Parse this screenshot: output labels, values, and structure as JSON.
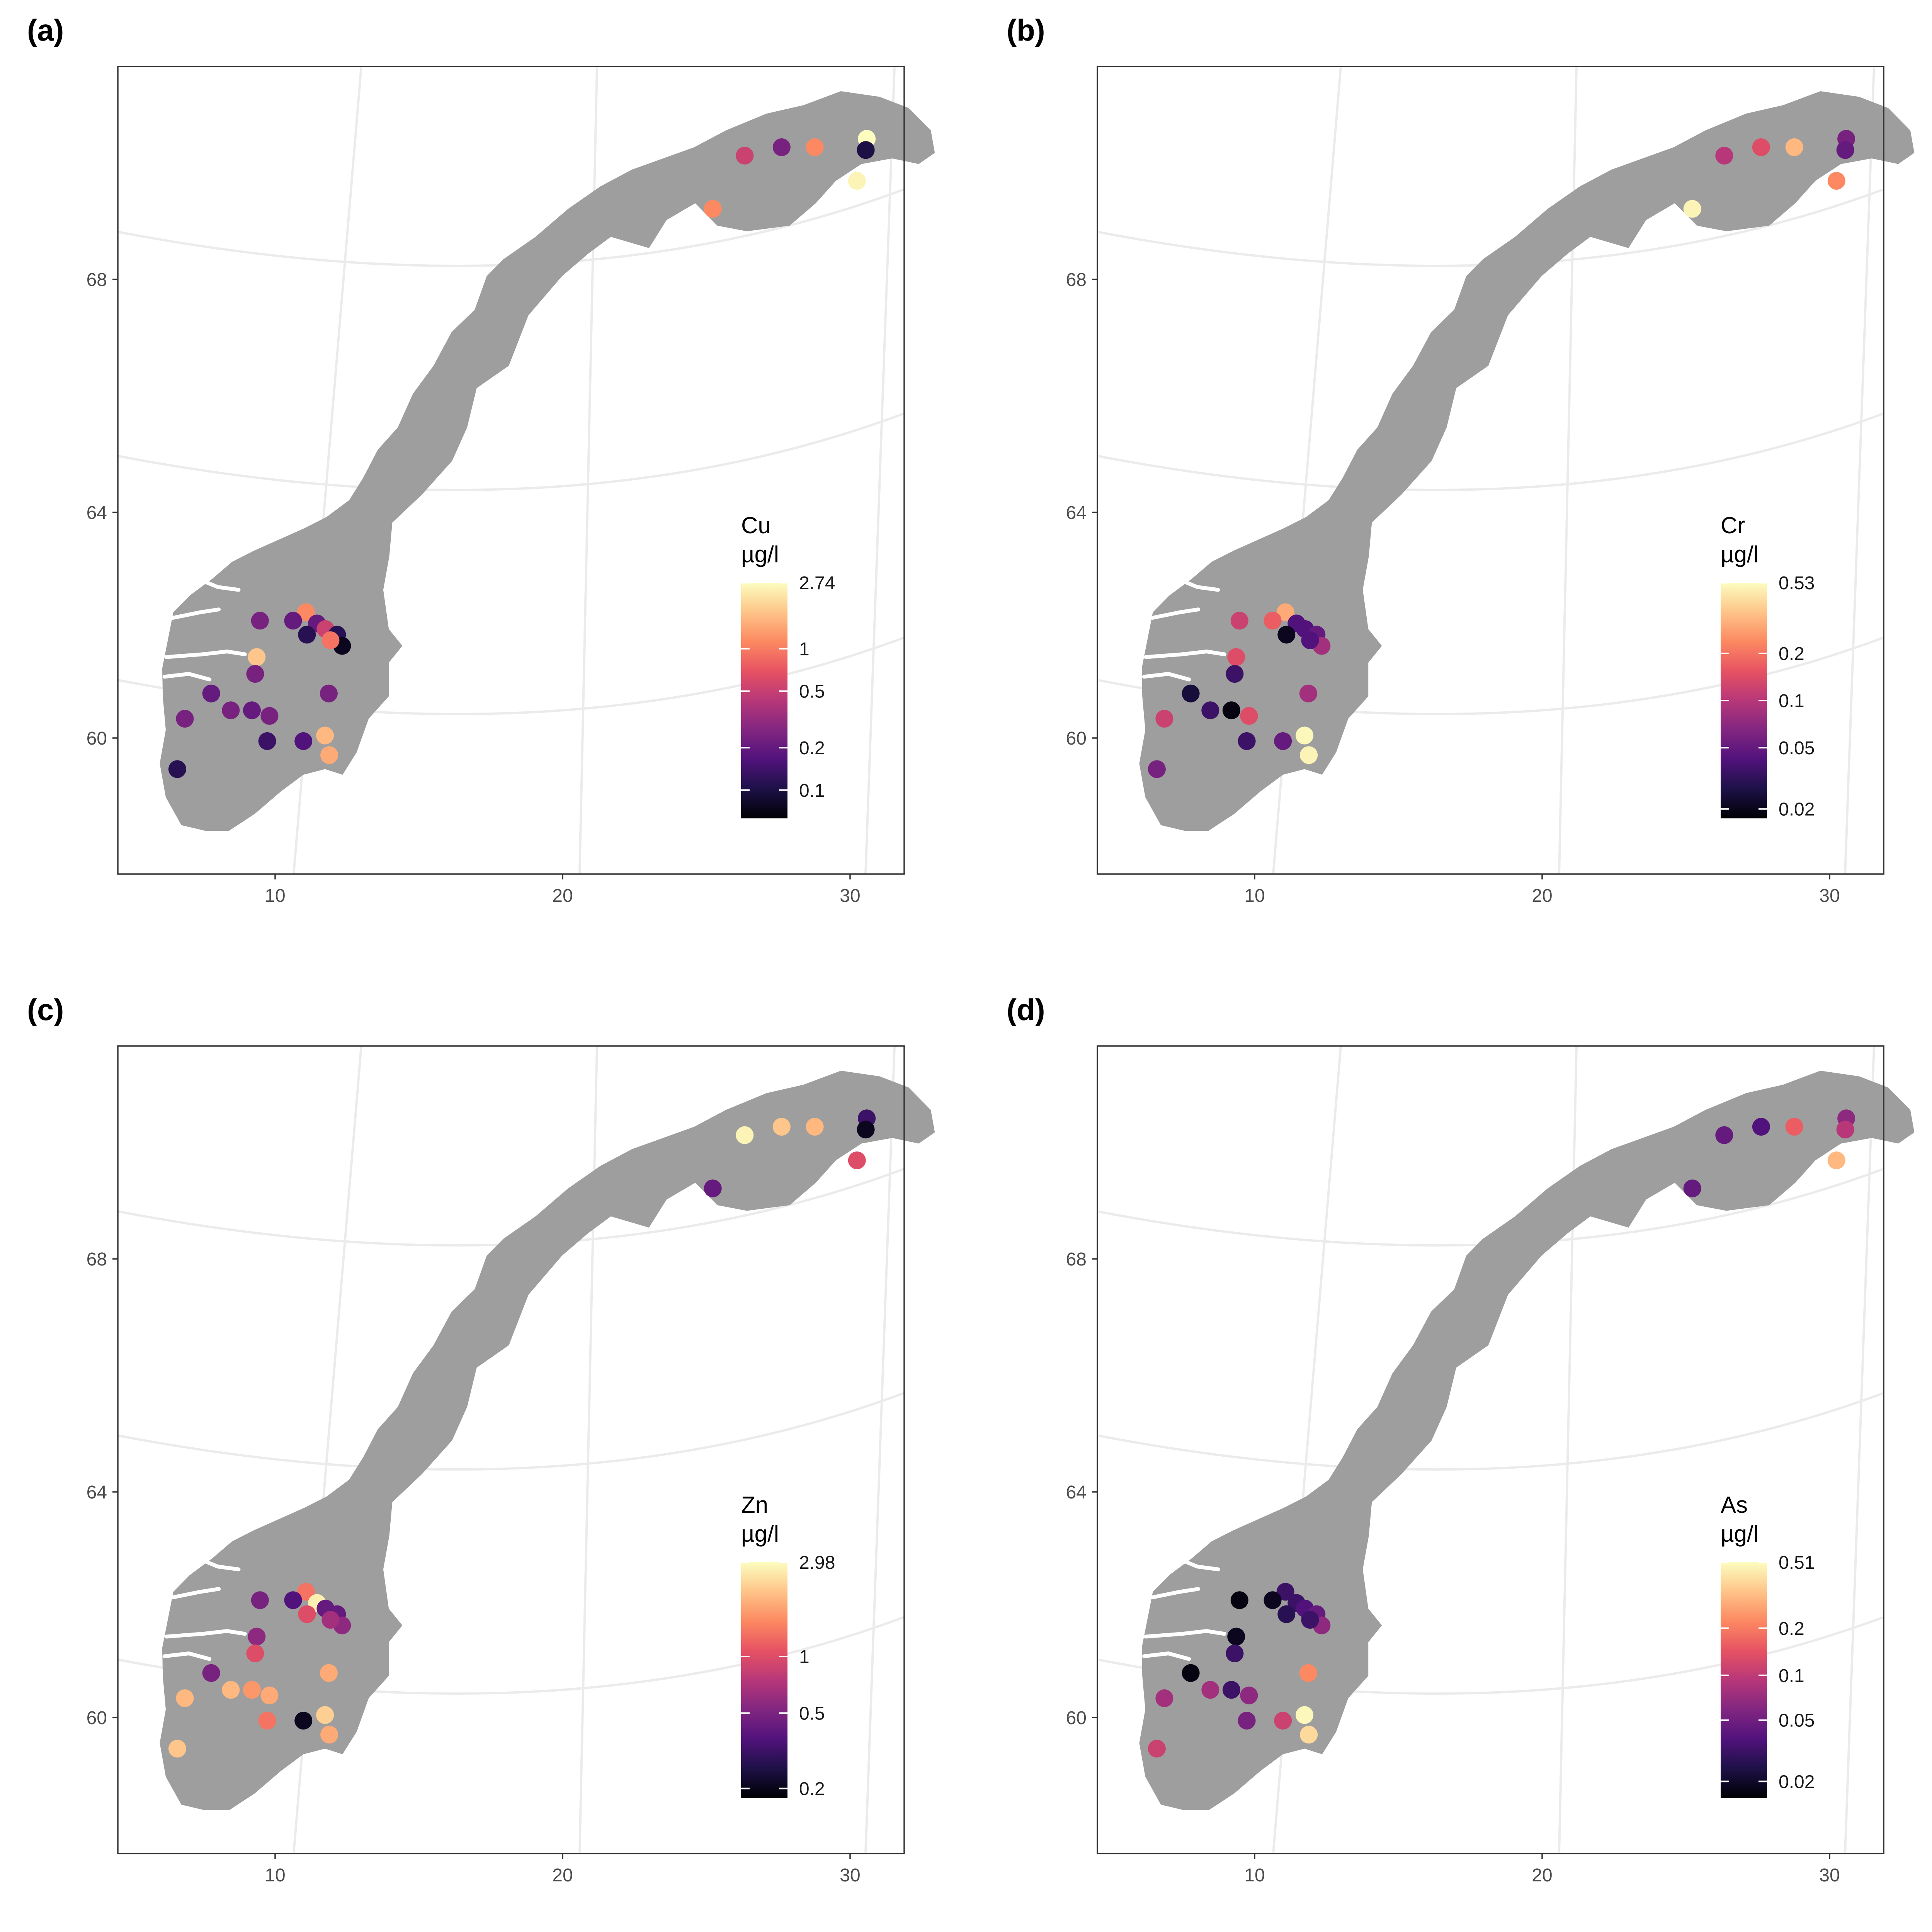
{
  "panels": [
    {
      "tag": "(a)",
      "legend_title": [
        "Cu",
        "µg/l"
      ],
      "legend_ticks": [
        {
          "label": "2.74",
          "frac": 0.0
        },
        {
          "label": "1",
          "frac": 0.28
        },
        {
          "label": "0.5",
          "frac": 0.46
        },
        {
          "label": "0.2",
          "frac": 0.7
        },
        {
          "label": "0.1",
          "frac": 0.88
        }
      ],
      "points": [
        {
          "lon": 26.7,
          "lat": 70.35,
          "v": 1.0
        },
        {
          "lon": 26.7,
          "lat": 70.15,
          "v": 0.12
        },
        {
          "lon": 26.5,
          "lat": 69.6,
          "v": 0.98
        },
        {
          "lon": 23.9,
          "lat": 70.2,
          "v": 0.35
        },
        {
          "lon": 22.7,
          "lat": 70.05,
          "v": 0.55
        },
        {
          "lon": 25.0,
          "lat": 70.2,
          "v": 0.75
        },
        {
          "lon": 21.8,
          "lat": 69.1,
          "v": 0.75
        },
        {
          "lon": 9.5,
          "lat": 61.9,
          "v": 0.75
        },
        {
          "lon": 9.1,
          "lat": 61.75,
          "v": 0.3
        },
        {
          "lon": 8.0,
          "lat": 61.75,
          "v": 0.35
        },
        {
          "lon": 8.0,
          "lat": 61.1,
          "v": 0.88
        },
        {
          "lon": 8.0,
          "lat": 60.8,
          "v": 0.35
        },
        {
          "lon": 9.9,
          "lat": 61.7,
          "v": 0.3
        },
        {
          "lon": 9.6,
          "lat": 61.5,
          "v": 0.15
        },
        {
          "lon": 10.2,
          "lat": 61.6,
          "v": 0.55
        },
        {
          "lon": 10.6,
          "lat": 61.5,
          "v": 0.15
        },
        {
          "lon": 10.8,
          "lat": 61.3,
          "v": 0.05
        },
        {
          "lon": 10.4,
          "lat": 61.4,
          "v": 0.7
        },
        {
          "lon": 10.5,
          "lat": 60.45,
          "v": 0.35
        },
        {
          "lon": 6.6,
          "lat": 60.45,
          "v": 0.3
        },
        {
          "lon": 7.3,
          "lat": 60.15,
          "v": 0.35
        },
        {
          "lon": 8.0,
          "lat": 60.15,
          "v": 0.3
        },
        {
          "lon": 8.6,
          "lat": 60.05,
          "v": 0.35
        },
        {
          "lon": 5.8,
          "lat": 60.0,
          "v": 0.35
        },
        {
          "lon": 8.6,
          "lat": 59.6,
          "v": 0.2
        },
        {
          "lon": 9.8,
          "lat": 59.6,
          "v": 0.25
        },
        {
          "lon": 10.5,
          "lat": 59.7,
          "v": 0.85
        },
        {
          "lon": 10.7,
          "lat": 59.35,
          "v": 0.82
        },
        {
          "lon": 5.7,
          "lat": 59.1,
          "v": 0.15
        }
      ]
    },
    {
      "tag": "(b)",
      "legend_title": [
        "Cr",
        "µg/l"
      ],
      "legend_ticks": [
        {
          "label": "0.53",
          "frac": 0.0
        },
        {
          "label": "0.2",
          "frac": 0.3
        },
        {
          "label": "0.1",
          "frac": 0.5
        },
        {
          "label": "0.05",
          "frac": 0.7
        },
        {
          "label": "0.02",
          "frac": 0.96
        }
      ],
      "points": [
        {
          "lon": 26.7,
          "lat": 70.35,
          "v": 0.35
        },
        {
          "lon": 26.7,
          "lat": 70.15,
          "v": 0.3
        },
        {
          "lon": 26.5,
          "lat": 69.6,
          "v": 0.75
        },
        {
          "lon": 23.9,
          "lat": 70.2,
          "v": 0.6
        },
        {
          "lon": 22.7,
          "lat": 70.05,
          "v": 0.5
        },
        {
          "lon": 25.0,
          "lat": 70.2,
          "v": 0.85
        },
        {
          "lon": 21.8,
          "lat": 69.1,
          "v": 0.98
        },
        {
          "lon": 9.5,
          "lat": 61.9,
          "v": 0.82
        },
        {
          "lon": 9.1,
          "lat": 61.75,
          "v": 0.65
        },
        {
          "lon": 8.0,
          "lat": 61.75,
          "v": 0.55
        },
        {
          "lon": 8.0,
          "lat": 61.1,
          "v": 0.6
        },
        {
          "lon": 8.0,
          "lat": 60.8,
          "v": 0.2
        },
        {
          "lon": 9.9,
          "lat": 61.7,
          "v": 0.25
        },
        {
          "lon": 9.6,
          "lat": 61.5,
          "v": 0.05
        },
        {
          "lon": 10.2,
          "lat": 61.6,
          "v": 0.25
        },
        {
          "lon": 10.6,
          "lat": 61.5,
          "v": 0.3
        },
        {
          "lon": 10.8,
          "lat": 61.3,
          "v": 0.45
        },
        {
          "lon": 10.4,
          "lat": 61.4,
          "v": 0.25
        },
        {
          "lon": 10.5,
          "lat": 60.45,
          "v": 0.45
        },
        {
          "lon": 6.6,
          "lat": 60.45,
          "v": 0.1
        },
        {
          "lon": 7.3,
          "lat": 60.15,
          "v": 0.2
        },
        {
          "lon": 8.0,
          "lat": 60.15,
          "v": 0.02
        },
        {
          "lon": 8.6,
          "lat": 60.05,
          "v": 0.6
        },
        {
          "lon": 5.8,
          "lat": 60.0,
          "v": 0.55
        },
        {
          "lon": 8.6,
          "lat": 59.6,
          "v": 0.2
        },
        {
          "lon": 9.8,
          "lat": 59.6,
          "v": 0.3
        },
        {
          "lon": 10.5,
          "lat": 59.7,
          "v": 0.99
        },
        {
          "lon": 10.7,
          "lat": 59.35,
          "v": 0.98
        },
        {
          "lon": 5.7,
          "lat": 59.1,
          "v": 0.35
        }
      ]
    },
    {
      "tag": "(c)",
      "legend_title": [
        "Zn",
        "µg/l"
      ],
      "legend_ticks": [
        {
          "label": "2.98",
          "frac": 0.0
        },
        {
          "label": "1",
          "frac": 0.4
        },
        {
          "label": "0.5",
          "frac": 0.64
        },
        {
          "label": "0.2",
          "frac": 0.96
        }
      ],
      "points": [
        {
          "lon": 26.7,
          "lat": 70.35,
          "v": 0.2
        },
        {
          "lon": 26.7,
          "lat": 70.15,
          "v": 0.05
        },
        {
          "lon": 26.5,
          "lat": 69.6,
          "v": 0.6
        },
        {
          "lon": 23.9,
          "lat": 70.2,
          "v": 0.88
        },
        {
          "lon": 22.7,
          "lat": 70.05,
          "v": 0.98
        },
        {
          "lon": 25.0,
          "lat": 70.2,
          "v": 0.85
        },
        {
          "lon": 21.8,
          "lat": 69.1,
          "v": 0.3
        },
        {
          "lon": 9.5,
          "lat": 61.9,
          "v": 0.7
        },
        {
          "lon": 9.1,
          "lat": 61.75,
          "v": 0.25
        },
        {
          "lon": 8.0,
          "lat": 61.75,
          "v": 0.35
        },
        {
          "lon": 8.0,
          "lat": 61.1,
          "v": 0.4
        },
        {
          "lon": 8.0,
          "lat": 60.8,
          "v": 0.6
        },
        {
          "lon": 9.9,
          "lat": 61.7,
          "v": 0.97
        },
        {
          "lon": 9.6,
          "lat": 61.5,
          "v": 0.6
        },
        {
          "lon": 10.2,
          "lat": 61.6,
          "v": 0.3
        },
        {
          "lon": 10.6,
          "lat": 61.5,
          "v": 0.3
        },
        {
          "lon": 10.8,
          "lat": 61.3,
          "v": 0.4
        },
        {
          "lon": 10.4,
          "lat": 61.4,
          "v": 0.45
        },
        {
          "lon": 10.5,
          "lat": 60.45,
          "v": 0.82
        },
        {
          "lon": 6.6,
          "lat": 60.45,
          "v": 0.35
        },
        {
          "lon": 7.3,
          "lat": 60.15,
          "v": 0.85
        },
        {
          "lon": 8.0,
          "lat": 60.15,
          "v": 0.78
        },
        {
          "lon": 8.6,
          "lat": 60.05,
          "v": 0.82
        },
        {
          "lon": 5.8,
          "lat": 60.0,
          "v": 0.85
        },
        {
          "lon": 8.6,
          "lat": 59.6,
          "v": 0.7
        },
        {
          "lon": 9.8,
          "lat": 59.6,
          "v": 0.05
        },
        {
          "lon": 10.5,
          "lat": 59.7,
          "v": 0.9
        },
        {
          "lon": 10.7,
          "lat": 59.35,
          "v": 0.82
        },
        {
          "lon": 5.7,
          "lat": 59.1,
          "v": 0.88
        }
      ]
    },
    {
      "tag": "(d)",
      "legend_title": [
        "As",
        "µg/l"
      ],
      "legend_ticks": [
        {
          "label": "0.51",
          "frac": 0.0
        },
        {
          "label": "0.2",
          "frac": 0.28
        },
        {
          "label": "0.1",
          "frac": 0.48
        },
        {
          "label": "0.05",
          "frac": 0.67
        },
        {
          "label": "0.02",
          "frac": 0.93
        }
      ],
      "points": [
        {
          "lon": 26.7,
          "lat": 70.35,
          "v": 0.4
        },
        {
          "lon": 26.7,
          "lat": 70.15,
          "v": 0.5
        },
        {
          "lon": 26.5,
          "lat": 69.6,
          "v": 0.85
        },
        {
          "lon": 23.9,
          "lat": 70.2,
          "v": 0.25
        },
        {
          "lon": 22.7,
          "lat": 70.05,
          "v": 0.3
        },
        {
          "lon": 25.0,
          "lat": 70.2,
          "v": 0.65
        },
        {
          "lon": 21.8,
          "lat": 69.1,
          "v": 0.3
        },
        {
          "lon": 9.5,
          "lat": 61.9,
          "v": 0.2
        },
        {
          "lon": 9.1,
          "lat": 61.75,
          "v": 0.05
        },
        {
          "lon": 8.0,
          "lat": 61.75,
          "v": 0.02
        },
        {
          "lon": 8.0,
          "lat": 61.1,
          "v": 0.05
        },
        {
          "lon": 8.0,
          "lat": 60.8,
          "v": 0.2
        },
        {
          "lon": 9.9,
          "lat": 61.7,
          "v": 0.2
        },
        {
          "lon": 9.6,
          "lat": 61.5,
          "v": 0.15
        },
        {
          "lon": 10.2,
          "lat": 61.6,
          "v": 0.25
        },
        {
          "lon": 10.6,
          "lat": 61.5,
          "v": 0.3
        },
        {
          "lon": 10.8,
          "lat": 61.3,
          "v": 0.4
        },
        {
          "lon": 10.4,
          "lat": 61.4,
          "v": 0.2
        },
        {
          "lon": 10.5,
          "lat": 60.45,
          "v": 0.75
        },
        {
          "lon": 6.6,
          "lat": 60.45,
          "v": 0.02
        },
        {
          "lon": 7.3,
          "lat": 60.15,
          "v": 0.45
        },
        {
          "lon": 8.0,
          "lat": 60.15,
          "v": 0.2
        },
        {
          "lon": 8.6,
          "lat": 60.05,
          "v": 0.4
        },
        {
          "lon": 5.8,
          "lat": 60.0,
          "v": 0.45
        },
        {
          "lon": 8.6,
          "lat": 59.6,
          "v": 0.35
        },
        {
          "lon": 9.8,
          "lat": 59.6,
          "v": 0.55
        },
        {
          "lon": 10.5,
          "lat": 59.7,
          "v": 0.99
        },
        {
          "lon": 10.7,
          "lat": 59.35,
          "v": 0.92
        },
        {
          "lon": 5.7,
          "lat": 59.1,
          "v": 0.55
        }
      ]
    }
  ],
  "x_ticks": [
    "10",
    "20",
    "30"
  ],
  "y_ticks": [
    "68",
    "64",
    "60"
  ],
  "colors": {
    "land": "#9e9e9e",
    "graticule": "#ebebeb",
    "panel_border": "#333333",
    "scale": [
      "#000004",
      "#1d1147",
      "#51127c",
      "#822681",
      "#b73779",
      "#e75263",
      "#fc8961",
      "#fec488",
      "#fcfdbf"
    ]
  },
  "color_scale": "magma (log)"
}
